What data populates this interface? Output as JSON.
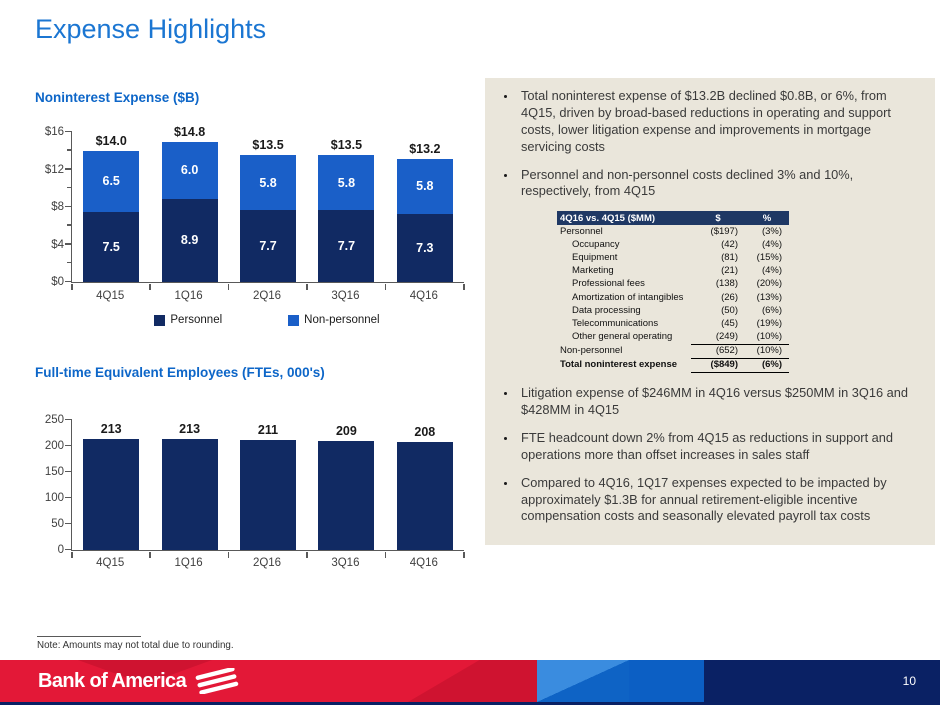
{
  "slide": {
    "title": "Expense Highlights",
    "note": "Note: Amounts may not total due to rounding.",
    "page_number": "10",
    "logo_text": "Bank of America"
  },
  "colors": {
    "title_blue": "#1b76d2",
    "heading_blue": "#0d66c8",
    "personnel_navy": "#112a63",
    "nonpersonnel_blue": "#1a5fc8",
    "panel_beige": "#eae6db",
    "table_header_navy": "#1f3864",
    "footer_red": "#e31837",
    "footer_navy": "#0a2164"
  },
  "chart_data": [
    {
      "type": "bar",
      "stacked": true,
      "title": "Noninterest Expense ($B)",
      "categories": [
        "4Q15",
        "1Q16",
        "2Q16",
        "3Q16",
        "4Q16"
      ],
      "series": [
        {
          "name": "Personnel",
          "color": "#112a63",
          "values": [
            7.5,
            8.9,
            7.7,
            7.7,
            7.3
          ]
        },
        {
          "name": "Non-personnel",
          "color": "#1a5fc8",
          "values": [
            6.5,
            6.0,
            5.8,
            5.8,
            5.8
          ]
        }
      ],
      "totals": [
        "$14.0",
        "$14.8",
        "$13.5",
        "$13.5",
        "$13.2"
      ],
      "ylim": [
        0,
        16
      ],
      "yticks": [
        "$0",
        "$4",
        "$8",
        "$12",
        "$16"
      ],
      "grid": false,
      "legend_position": "bottom"
    },
    {
      "type": "bar",
      "stacked": false,
      "title": "Full-time Equivalent Employees (FTEs, 000's)",
      "categories": [
        "4Q15",
        "1Q16",
        "2Q16",
        "3Q16",
        "4Q16"
      ],
      "values": [
        213,
        213,
        211,
        209,
        208
      ],
      "bar_color": "#112a63",
      "ylim": [
        0,
        250
      ],
      "yticks": [
        "0",
        "50",
        "100",
        "150",
        "200",
        "250"
      ],
      "grid": false,
      "legend_position": "none"
    }
  ],
  "panel": {
    "bullets_top": [
      "Total noninterest expense of $13.2B declined $0.8B, or 6%, from 4Q15, driven by broad-based reductions in operating and support costs, lower litigation expense and improvements in mortgage servicing costs",
      "Personnel and non-personnel costs declined 3% and 10%, respectively, from 4Q15"
    ],
    "table": {
      "headers": [
        "4Q16 vs. 4Q15 ($MM)",
        "$",
        "%"
      ],
      "rows": [
        {
          "label": "Personnel",
          "dollar": "($197)",
          "pct": "(3%)",
          "indent": false,
          "bold": false,
          "rule": false
        },
        {
          "label": "Occupancy",
          "dollar": "(42)",
          "pct": "(4%)",
          "indent": true,
          "bold": false,
          "rule": false
        },
        {
          "label": "Equipment",
          "dollar": "(81)",
          "pct": "(15%)",
          "indent": true,
          "bold": false,
          "rule": false
        },
        {
          "label": "Marketing",
          "dollar": "(21)",
          "pct": "(4%)",
          "indent": true,
          "bold": false,
          "rule": false
        },
        {
          "label": "Professional fees",
          "dollar": "(138)",
          "pct": "(20%)",
          "indent": true,
          "bold": false,
          "rule": false
        },
        {
          "label": "Amortization of intangibles",
          "dollar": "(26)",
          "pct": "(13%)",
          "indent": true,
          "bold": false,
          "rule": false
        },
        {
          "label": "Data processing",
          "dollar": "(50)",
          "pct": "(6%)",
          "indent": true,
          "bold": false,
          "rule": false
        },
        {
          "label": "Telecommunications",
          "dollar": "(45)",
          "pct": "(19%)",
          "indent": true,
          "bold": false,
          "rule": false
        },
        {
          "label": "Other general operating",
          "dollar": "(249)",
          "pct": "(10%)",
          "indent": true,
          "bold": false,
          "rule": true
        },
        {
          "label": "Non-personnel",
          "dollar": "(652)",
          "pct": "(10%)",
          "indent": false,
          "bold": false,
          "rule": true
        },
        {
          "label": "Total noninterest expense",
          "dollar": "($849)",
          "pct": "(6%)",
          "indent": false,
          "bold": true,
          "rule": true
        }
      ]
    },
    "bullets_bottom": [
      "Litigation expense of $246MM in 4Q16 versus $250MM in 3Q16 and $428MM in 4Q15",
      "FTE headcount down 2% from 4Q15 as reductions in support and operations more than offset increases in sales staff",
      "Compared to 4Q16, 1Q17 expenses expected to be impacted by approximately $1.3B for annual retirement-eligible incentive compensation costs and seasonally elevated payroll tax costs"
    ]
  }
}
